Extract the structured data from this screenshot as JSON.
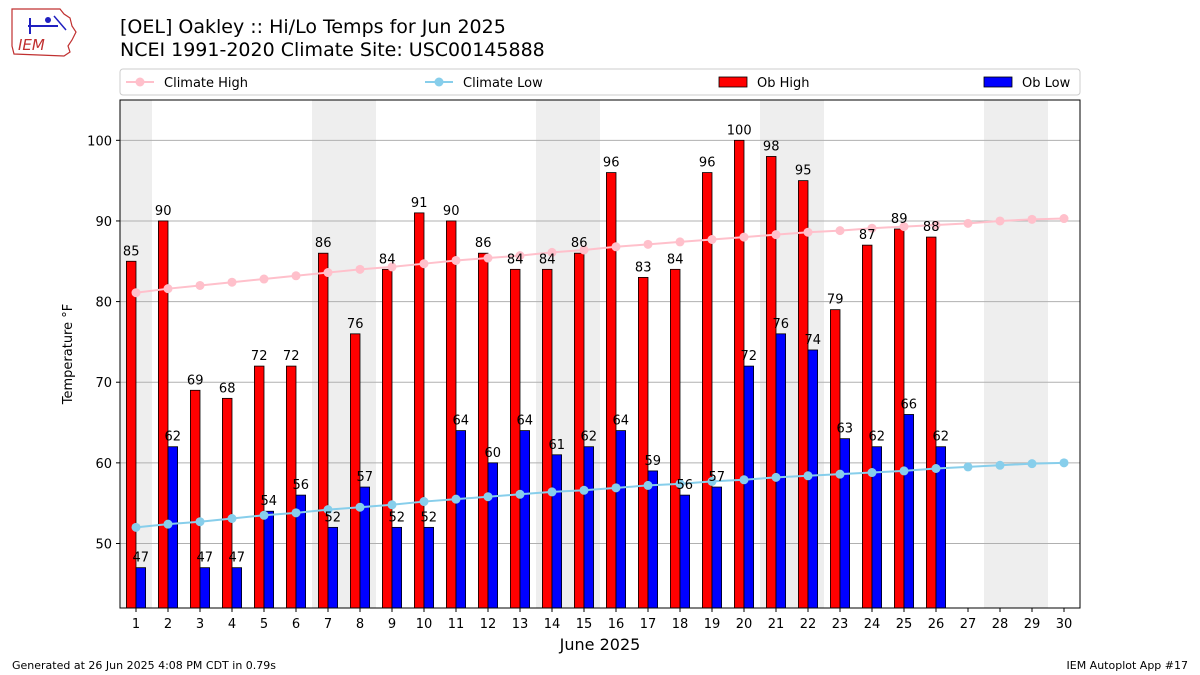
{
  "header": {
    "title_line1": "[OEL] Oakley :: Hi/Lo Temps for Jun 2025",
    "title_line2": "NCEI 1991-2020 Climate Site: USC00145888",
    "logo_text": "IEM"
  },
  "footer": {
    "generated": "Generated at 26 Jun 2025 4:08 PM CDT in 0.79s",
    "app": "IEM Autoplot App #17"
  },
  "colors": {
    "ob_high": "#ff0000",
    "ob_low": "#0000ff",
    "climate_high": "#ffc0cb",
    "climate_low": "#87ceeb",
    "weekend_shade": "#eeeeee",
    "grid": "#b0b0b0"
  },
  "chart_data": {
    "type": "bar",
    "xlabel": "June 2025",
    "ylabel": "Temperature °F",
    "ylim": [
      42,
      105
    ],
    "yticks": [
      50,
      60,
      70,
      80,
      90,
      100
    ],
    "grid": "horizontal",
    "legend_placement": "top",
    "days": [
      1,
      2,
      3,
      4,
      5,
      6,
      7,
      8,
      9,
      10,
      11,
      12,
      13,
      14,
      15,
      16,
      17,
      18,
      19,
      20,
      21,
      22,
      23,
      24,
      25,
      26,
      27,
      28,
      29,
      30
    ],
    "weekend_spans": [
      [
        1,
        1
      ],
      [
        7,
        8
      ],
      [
        14,
        15
      ],
      [
        21,
        22
      ],
      [
        28,
        29
      ]
    ],
    "series": [
      {
        "name": "Climate High",
        "kind": "line",
        "values": [
          81.1,
          81.6,
          82.0,
          82.4,
          82.8,
          83.2,
          83.6,
          84.0,
          84.3,
          84.7,
          85.1,
          85.4,
          85.7,
          86.1,
          86.4,
          86.8,
          87.1,
          87.4,
          87.7,
          88.0,
          88.3,
          88.6,
          88.8,
          89.1,
          89.3,
          89.5,
          89.7,
          90.0,
          90.2,
          90.3
        ]
      },
      {
        "name": "Climate Low",
        "kind": "line",
        "values": [
          52.0,
          52.4,
          52.7,
          53.1,
          53.5,
          53.8,
          54.2,
          54.5,
          54.8,
          55.2,
          55.5,
          55.8,
          56.1,
          56.4,
          56.6,
          56.9,
          57.2,
          57.4,
          57.7,
          57.9,
          58.2,
          58.4,
          58.6,
          58.8,
          59.0,
          59.3,
          59.5,
          59.7,
          59.9,
          60.0
        ]
      },
      {
        "name": "Ob High",
        "kind": "bar",
        "values": [
          85,
          90,
          69,
          68,
          72,
          72,
          86,
          76,
          84,
          91,
          90,
          86,
          84,
          84,
          86,
          96,
          83,
          84,
          96,
          100,
          98,
          95,
          79,
          87,
          89,
          88,
          null,
          null,
          null,
          null
        ]
      },
      {
        "name": "Ob Low",
        "kind": "bar",
        "values": [
          47,
          62,
          47,
          47,
          54,
          56,
          52,
          57,
          52,
          52,
          64,
          60,
          64,
          61,
          62,
          64,
          59,
          56,
          57,
          72,
          76,
          74,
          63,
          62,
          66,
          62,
          null,
          null,
          null,
          null
        ]
      }
    ]
  }
}
